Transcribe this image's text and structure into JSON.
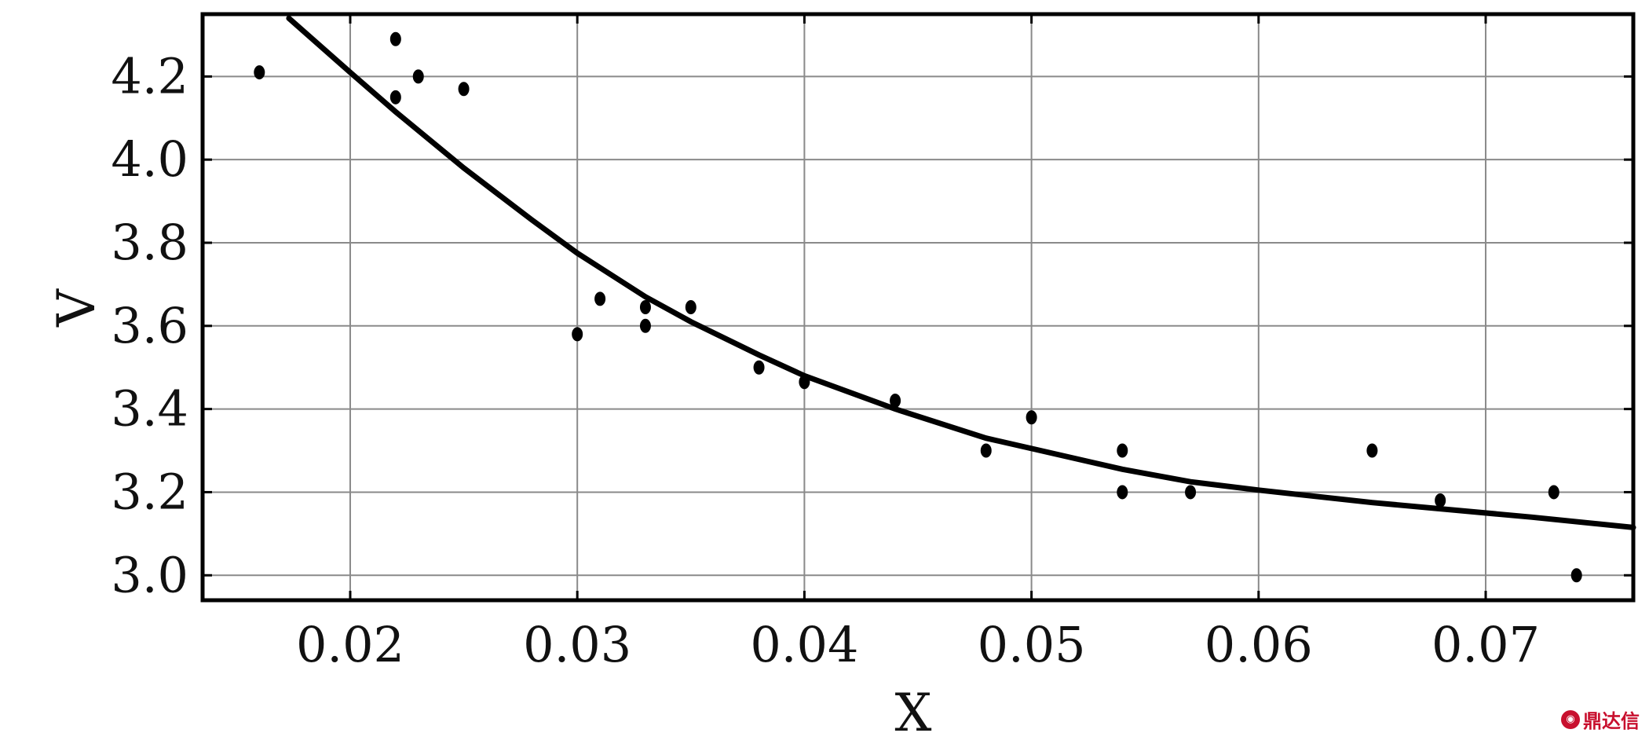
{
  "chart_data": {
    "type": "scatter",
    "title": "",
    "xlabel": "X",
    "ylabel": "V",
    "xlim": [
      0.0135,
      0.0765
    ],
    "ylim": [
      2.94,
      4.35
    ],
    "x_ticks": [
      0.02,
      0.03,
      0.04,
      0.05,
      0.06,
      0.07
    ],
    "x_tick_labels": [
      "0.02",
      "0.03",
      "0.04",
      "0.05",
      "0.06",
      "0.07"
    ],
    "y_ticks": [
      3.0,
      3.2,
      3.4,
      3.6,
      3.8,
      4.0,
      4.2
    ],
    "y_tick_labels": [
      "3.0",
      "3.2",
      "3.4",
      "3.6",
      "3.8",
      "4.0",
      "4.2"
    ],
    "grid": true,
    "legend": "none",
    "points": [
      {
        "x": 0.016,
        "y": 4.21
      },
      {
        "x": 0.022,
        "y": 4.29
      },
      {
        "x": 0.022,
        "y": 4.15
      },
      {
        "x": 0.023,
        "y": 4.2
      },
      {
        "x": 0.025,
        "y": 4.17
      },
      {
        "x": 0.03,
        "y": 3.58
      },
      {
        "x": 0.031,
        "y": 3.665
      },
      {
        "x": 0.033,
        "y": 3.645
      },
      {
        "x": 0.033,
        "y": 3.6
      },
      {
        "x": 0.035,
        "y": 3.645
      },
      {
        "x": 0.038,
        "y": 3.5
      },
      {
        "x": 0.04,
        "y": 3.465
      },
      {
        "x": 0.044,
        "y": 3.42
      },
      {
        "x": 0.048,
        "y": 3.3
      },
      {
        "x": 0.05,
        "y": 3.38
      },
      {
        "x": 0.054,
        "y": 3.3
      },
      {
        "x": 0.054,
        "y": 3.2
      },
      {
        "x": 0.057,
        "y": 3.2
      },
      {
        "x": 0.065,
        "y": 3.3
      },
      {
        "x": 0.068,
        "y": 3.18
      },
      {
        "x": 0.073,
        "y": 3.2
      },
      {
        "x": 0.074,
        "y": 3.0
      }
    ],
    "fit_curve": {
      "x": [
        0.0173,
        0.02,
        0.022,
        0.025,
        0.028,
        0.03,
        0.033,
        0.035,
        0.038,
        0.04,
        0.044,
        0.048,
        0.05,
        0.054,
        0.057,
        0.06,
        0.065,
        0.068,
        0.072,
        0.0765
      ],
      "y": [
        4.34,
        4.21,
        4.115,
        3.98,
        3.855,
        3.775,
        3.67,
        3.61,
        3.53,
        3.48,
        3.4,
        3.33,
        3.305,
        3.255,
        3.225,
        3.205,
        3.175,
        3.16,
        3.14,
        3.115
      ]
    }
  },
  "watermark": {
    "icon": "dingdaxin-logo-icon",
    "text": "鼎达信",
    "color": "#c8102e"
  }
}
